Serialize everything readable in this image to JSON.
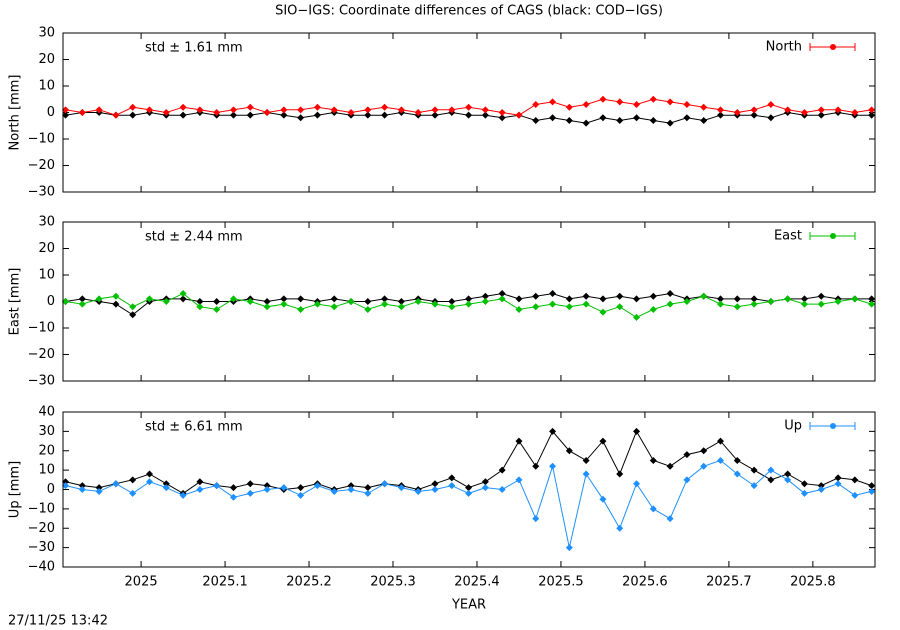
{
  "title": "SIO−IGS: Coordinate differences of CAGS (black: COD−IGS)",
  "timestamp": "27/11/25 13:42",
  "chart_data": [
    {
      "type": "line",
      "ylabel": "North [mm]",
      "annotation": "std ± 1.61 mm",
      "legend": "upper right",
      "xlim": [
        2024.907,
        2025.874
      ],
      "ylim": [
        -30,
        30
      ],
      "yticks": [
        {
          "value": -30,
          "label": "−30"
        },
        {
          "value": -20,
          "label": "−20"
        },
        {
          "value": -10,
          "label": "−10"
        },
        0,
        10,
        20,
        30
      ],
      "x": [
        2024.91,
        2024.93,
        2024.95,
        2024.97,
        2024.99,
        2025.01,
        2025.03,
        2025.05,
        2025.07,
        2025.09,
        2025.11,
        2025.13,
        2025.15,
        2025.17,
        2025.19,
        2025.21,
        2025.23,
        2025.25,
        2025.27,
        2025.29,
        2025.31,
        2025.33,
        2025.35,
        2025.37,
        2025.39,
        2025.41,
        2025.43,
        2025.45,
        2025.47,
        2025.49,
        2025.51,
        2025.53,
        2025.55,
        2025.57,
        2025.59,
        2025.61,
        2025.63,
        2025.65,
        2025.67,
        2025.69,
        2025.71,
        2025.73,
        2025.75,
        2025.77,
        2025.79,
        2025.81,
        2025.83,
        2025.85,
        2025.87
      ],
      "series": [
        {
          "color": "#000000",
          "values": [
            -1,
            0,
            0,
            -1,
            -1,
            0,
            -1,
            -1,
            0,
            -1,
            -1,
            -1,
            0,
            -1,
            -2,
            -1,
            0,
            -1,
            -1,
            -1,
            0,
            -1,
            -1,
            0,
            -1,
            -1,
            -2,
            -1,
            -3,
            -2,
            -3,
            -4,
            -2,
            -3,
            -2,
            -3,
            -4,
            -2,
            -3,
            -1,
            -1,
            -1,
            -2,
            0,
            -1,
            -1,
            0,
            -1,
            -1
          ]
        },
        {
          "name": "North",
          "color": "#ff0000",
          "values": [
            1,
            0,
            1,
            -1,
            2,
            1,
            0,
            2,
            1,
            0,
            1,
            2,
            0,
            1,
            1,
            2,
            1,
            0,
            1,
            2,
            1,
            0,
            1,
            1,
            2,
            1,
            0,
            -1,
            3,
            4,
            2,
            3,
            5,
            4,
            3,
            5,
            4,
            3,
            2,
            1,
            0,
            1,
            3,
            1,
            0,
            1,
            1,
            0,
            1
          ]
        }
      ]
    },
    {
      "type": "line",
      "ylabel": "East [mm]",
      "annotation": "std ± 2.44 mm",
      "legend": "upper right",
      "xlim": [
        2024.907,
        2025.874
      ],
      "ylim": [
        -30,
        30
      ],
      "yticks": [
        {
          "value": -30,
          "label": "−30"
        },
        {
          "value": -20,
          "label": "−20"
        },
        {
          "value": -10,
          "label": "−10"
        },
        0,
        10,
        20,
        30
      ],
      "x": [
        2024.91,
        2024.93,
        2024.95,
        2024.97,
        2024.99,
        2025.01,
        2025.03,
        2025.05,
        2025.07,
        2025.09,
        2025.11,
        2025.13,
        2025.15,
        2025.17,
        2025.19,
        2025.21,
        2025.23,
        2025.25,
        2025.27,
        2025.29,
        2025.31,
        2025.33,
        2025.35,
        2025.37,
        2025.39,
        2025.41,
        2025.43,
        2025.45,
        2025.47,
        2025.49,
        2025.51,
        2025.53,
        2025.55,
        2025.57,
        2025.59,
        2025.61,
        2025.63,
        2025.65,
        2025.67,
        2025.69,
        2025.71,
        2025.73,
        2025.75,
        2025.77,
        2025.79,
        2025.81,
        2025.83,
        2025.85,
        2025.87
      ],
      "series": [
        {
          "color": "#000000",
          "values": [
            0,
            1,
            0,
            -1,
            -5,
            0,
            1,
            1,
            0,
            0,
            0,
            1,
            0,
            1,
            1,
            0,
            1,
            0,
            0,
            1,
            0,
            1,
            0,
            0,
            1,
            2,
            3,
            1,
            2,
            3,
            1,
            2,
            1,
            2,
            1,
            2,
            3,
            1,
            2,
            1,
            1,
            1,
            0,
            1,
            1,
            2,
            1,
            1,
            1
          ]
        },
        {
          "name": "East",
          "color": "#00c000",
          "values": [
            0,
            -1,
            1,
            2,
            -2,
            1,
            0,
            3,
            -2,
            -3,
            1,
            0,
            -2,
            -1,
            -3,
            -1,
            -2,
            0,
            -3,
            -1,
            -2,
            0,
            -1,
            -2,
            -1,
            0,
            1,
            -3,
            -2,
            -1,
            -2,
            -1,
            -4,
            -2,
            -6,
            -3,
            -1,
            0,
            2,
            -1,
            -2,
            -1,
            0,
            1,
            -1,
            -1,
            0,
            1,
            -1
          ]
        }
      ]
    },
    {
      "type": "line",
      "ylabel": "Up [mm]",
      "annotation": "std ± 6.61 mm",
      "legend": "upper right",
      "xlabel": "YEAR",
      "xlim": [
        2024.907,
        2025.874
      ],
      "ylim": [
        -40,
        40
      ],
      "yticks": [
        {
          "value": -40,
          "label": "−40"
        },
        {
          "value": -30,
          "label": "−30"
        },
        {
          "value": -20,
          "label": "−20"
        },
        {
          "value": -10,
          "label": "−10"
        },
        0,
        10,
        20,
        30,
        40
      ],
      "xticks": [
        2025,
        2025.1,
        2025.2,
        2025.3,
        2025.4,
        2025.5,
        2025.6,
        2025.7,
        2025.8
      ],
      "x": [
        2024.91,
        2024.93,
        2024.95,
        2024.97,
        2024.99,
        2025.01,
        2025.03,
        2025.05,
        2025.07,
        2025.09,
        2025.11,
        2025.13,
        2025.15,
        2025.17,
        2025.19,
        2025.21,
        2025.23,
        2025.25,
        2025.27,
        2025.29,
        2025.31,
        2025.33,
        2025.35,
        2025.37,
        2025.39,
        2025.41,
        2025.43,
        2025.45,
        2025.47,
        2025.49,
        2025.51,
        2025.53,
        2025.55,
        2025.57,
        2025.59,
        2025.61,
        2025.63,
        2025.65,
        2025.67,
        2025.69,
        2025.71,
        2025.73,
        2025.75,
        2025.77,
        2025.79,
        2025.81,
        2025.83,
        2025.85,
        2025.87
      ],
      "series": [
        {
          "color": "#000000",
          "values": [
            4,
            2,
            1,
            3,
            5,
            8,
            3,
            -2,
            4,
            2,
            1,
            3,
            2,
            0,
            1,
            3,
            0,
            2,
            1,
            3,
            2,
            0,
            3,
            6,
            1,
            4,
            10,
            25,
            12,
            30,
            20,
            15,
            25,
            8,
            30,
            15,
            12,
            18,
            20,
            25,
            15,
            10,
            5,
            8,
            3,
            2,
            6,
            5,
            2
          ]
        },
        {
          "name": "Up",
          "color": "#1e90ff",
          "values": [
            2,
            0,
            -1,
            3,
            -2,
            4,
            1,
            -3,
            0,
            2,
            -4,
            -2,
            0,
            1,
            -3,
            2,
            -1,
            0,
            -2,
            3,
            1,
            -1,
            0,
            2,
            -2,
            1,
            0,
            5,
            -15,
            12,
            -30,
            8,
            -5,
            -20,
            3,
            -10,
            -15,
            5,
            12,
            15,
            8,
            2,
            10,
            5,
            -2,
            0,
            3,
            -3,
            -1
          ]
        }
      ]
    }
  ]
}
